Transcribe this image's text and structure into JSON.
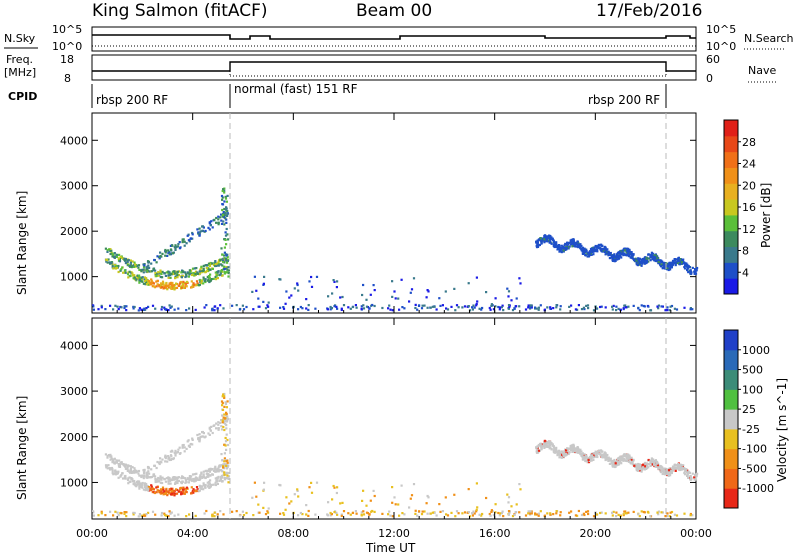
{
  "header": {
    "station": "King Salmon (fitACF)",
    "beam": "Beam 00",
    "date": "17/Feb/2016"
  },
  "summary_panels": {
    "nsky": {
      "label": "N.Sky",
      "tick_top": "10^5",
      "tick_bottom": "10^0"
    },
    "freq": {
      "label_line1": "Freq.",
      "label_line2": "[MHz]",
      "tick_top": "18",
      "tick_bottom": "8"
    },
    "cpid": {
      "label": "CPID"
    },
    "nsearch": {
      "label": "N.Search",
      "tick_top": "10^5",
      "tick_bottom": "10^0"
    },
    "nave": {
      "label": "Nave",
      "tick_top": "60",
      "tick_bottom": "0"
    }
  },
  "cpid_segments": [
    {
      "name": "rbsp 200 RF",
      "start_h": 0.0,
      "end_h": 5.4
    },
    {
      "name": "normal (fast) 151 RF",
      "start_h": 5.4,
      "end_h": 22.9
    },
    {
      "name": "rbsp 200 RF",
      "start_h": 22.9,
      "end_h": 24.0
    }
  ],
  "chart_data": [
    {
      "type": "heatmap",
      "panel": "power",
      "ylabel": "Slant Range [km]",
      "xlabel": "",
      "ylim": [
        200,
        4600
      ],
      "yticks": [
        1000,
        2000,
        3000,
        4000
      ],
      "xlim_hours": [
        0,
        24
      ],
      "colorbar": {
        "label": "Power [dB]",
        "ticks": [
          "4",
          "8",
          "12",
          "16",
          "20",
          "24",
          "28"
        ],
        "colors": [
          "#1a1ae6",
          "#1e4fc8",
          "#3a7a8c",
          "#3c8a5e",
          "#5bbf3a",
          "#c8c820",
          "#e8b020",
          "#f09018",
          "#f07018",
          "#e84818",
          "#e02018"
        ]
      },
      "features": [
        {
          "desc": "low band",
          "t_start": 0.0,
          "t_end": 24.0,
          "range_center": 320,
          "range_spread": 40
        },
        {
          "desc": "morning arc",
          "t_start": 0.5,
          "t_end": 5.4,
          "range_center": 1150,
          "range_spread": 600
        },
        {
          "desc": "evening band",
          "t_start": 17.5,
          "t_end": 24.0,
          "range_center": 1500,
          "range_spread": 300
        }
      ]
    },
    {
      "type": "heatmap",
      "panel": "velocity",
      "ylabel": "Slant Range [km]",
      "xlabel": "Time UT",
      "ylim": [
        200,
        4600
      ],
      "yticks": [
        1000,
        2000,
        3000,
        4000
      ],
      "xlim_hours": [
        0,
        24
      ],
      "xticks": [
        "00:00",
        "04:00",
        "08:00",
        "12:00",
        "16:00",
        "20:00",
        "00:00"
      ],
      "colorbar": {
        "label": "Velocity [m s^-1]",
        "ticks": [
          "1000",
          "500",
          "100",
          "25",
          "-25",
          "-100",
          "-500",
          "-1000"
        ],
        "colors": [
          "#2040c8",
          "#2a6ab8",
          "#3c8c78",
          "#50c040",
          "#c8c8c8",
          "#e8c020",
          "#f09018",
          "#f06818",
          "#e82818"
        ]
      }
    }
  ]
}
